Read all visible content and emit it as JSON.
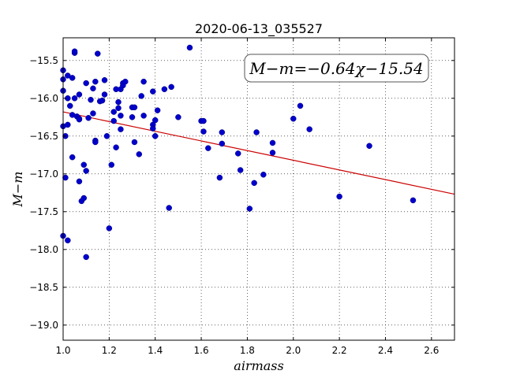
{
  "chart_data": {
    "type": "scatter",
    "title": "2020-06-13_035527",
    "xlabel": "airmass",
    "ylabel": "M−m",
    "xlim": [
      1.0,
      2.7
    ],
    "ylim": [
      -19.2,
      -15.2
    ],
    "y_inverted": true,
    "grid": true,
    "x_ticks": [
      1.0,
      1.2,
      1.4,
      1.6,
      1.8,
      2.0,
      2.2,
      2.4,
      2.6
    ],
    "x_tick_labels": [
      "1.0",
      "1.2",
      "1.4",
      "1.6",
      "1.8",
      "2.0",
      "2.2",
      "2.4",
      "2.6"
    ],
    "y_ticks": [
      -15.5,
      -16.0,
      -16.5,
      -17.0,
      -17.5,
      -18.0,
      -18.5,
      -19.0
    ],
    "y_tick_labels": [
      "−15.5",
      "−16.0",
      "−16.5",
      "−17.0",
      "−17.5",
      "−18.0",
      "−18.5",
      "−19.0"
    ],
    "annotation": "M−m=−0.64χ−15.54",
    "annotation_placement": "top-right",
    "fit": {
      "slope": -0.64,
      "intercept": -15.54,
      "color": "#cc0000"
    },
    "points_color": "#0000cc",
    "points": [
      [
        1.0,
        -15.63
      ],
      [
        1.0,
        -15.75
      ],
      [
        1.0,
        -15.9
      ],
      [
        1.0,
        -16.37
      ],
      [
        1.0,
        -17.82
      ],
      [
        1.01,
        -16.5
      ],
      [
        1.01,
        -17.05
      ],
      [
        1.02,
        -15.7
      ],
      [
        1.02,
        -16.0
      ],
      [
        1.02,
        -16.35
      ],
      [
        1.02,
        -17.88
      ],
      [
        1.03,
        -16.1
      ],
      [
        1.04,
        -15.73
      ],
      [
        1.04,
        -16.22
      ],
      [
        1.04,
        -16.78
      ],
      [
        1.05,
        -15.4
      ],
      [
        1.05,
        -15.38
      ],
      [
        1.05,
        -16.0
      ],
      [
        1.06,
        -16.24
      ],
      [
        1.07,
        -15.95
      ],
      [
        1.07,
        -16.27
      ],
      [
        1.07,
        -16.28
      ],
      [
        1.07,
        -17.1
      ],
      [
        1.08,
        -17.36
      ],
      [
        1.09,
        -16.88
      ],
      [
        1.09,
        -17.32
      ],
      [
        1.1,
        -16.96
      ],
      [
        1.1,
        -15.8
      ],
      [
        1.1,
        -18.1
      ],
      [
        1.11,
        -16.26
      ],
      [
        1.12,
        -16.02
      ],
      [
        1.13,
        -15.87
      ],
      [
        1.13,
        -16.2
      ],
      [
        1.14,
        -16.56
      ],
      [
        1.14,
        -16.58
      ],
      [
        1.14,
        -15.78
      ],
      [
        1.15,
        -15.41
      ],
      [
        1.16,
        -16.04
      ],
      [
        1.17,
        -16.03
      ],
      [
        1.18,
        -15.95
      ],
      [
        1.18,
        -15.76
      ],
      [
        1.19,
        -16.5
      ],
      [
        1.2,
        -17.72
      ],
      [
        1.21,
        -16.88
      ],
      [
        1.22,
        -16.18
      ],
      [
        1.22,
        -16.3
      ],
      [
        1.23,
        -16.65
      ],
      [
        1.23,
        -15.88
      ],
      [
        1.24,
        -16.13
      ],
      [
        1.24,
        -16.05
      ],
      [
        1.25,
        -15.88
      ],
      [
        1.25,
        -16.23
      ],
      [
        1.25,
        -16.41
      ],
      [
        1.26,
        -15.8
      ],
      [
        1.26,
        -15.83
      ],
      [
        1.27,
        -15.78
      ],
      [
        1.3,
        -16.12
      ],
      [
        1.3,
        -16.25
      ],
      [
        1.31,
        -16.12
      ],
      [
        1.31,
        -16.58
      ],
      [
        1.33,
        -16.74
      ],
      [
        1.34,
        -15.97
      ],
      [
        1.35,
        -15.78
      ],
      [
        1.35,
        -16.23
      ],
      [
        1.39,
        -16.35
      ],
      [
        1.39,
        -16.4
      ],
      [
        1.4,
        -16.29
      ],
      [
        1.4,
        -16.5
      ],
      [
        1.39,
        -15.91
      ],
      [
        1.41,
        -16.16
      ],
      [
        1.44,
        -15.88
      ],
      [
        1.46,
        -17.45
      ],
      [
        1.47,
        -15.85
      ],
      [
        1.5,
        -16.25
      ],
      [
        1.55,
        -15.33
      ],
      [
        1.6,
        -16.3
      ],
      [
        1.61,
        -16.3
      ],
      [
        1.61,
        -16.44
      ],
      [
        1.63,
        -16.66
      ],
      [
        1.68,
        -17.05
      ],
      [
        1.69,
        -16.45
      ],
      [
        1.69,
        -16.6
      ],
      [
        1.76,
        -16.73
      ],
      [
        1.77,
        -16.95
      ],
      [
        1.81,
        -17.46
      ],
      [
        1.83,
        -17.12
      ],
      [
        1.84,
        -16.45
      ],
      [
        1.87,
        -17.01
      ],
      [
        1.91,
        -16.59
      ],
      [
        1.91,
        -16.72
      ],
      [
        2.0,
        -16.27
      ],
      [
        2.03,
        -16.1
      ],
      [
        2.07,
        -16.41
      ],
      [
        2.2,
        -17.3
      ],
      [
        2.33,
        -16.63
      ],
      [
        2.52,
        -17.35
      ]
    ]
  }
}
